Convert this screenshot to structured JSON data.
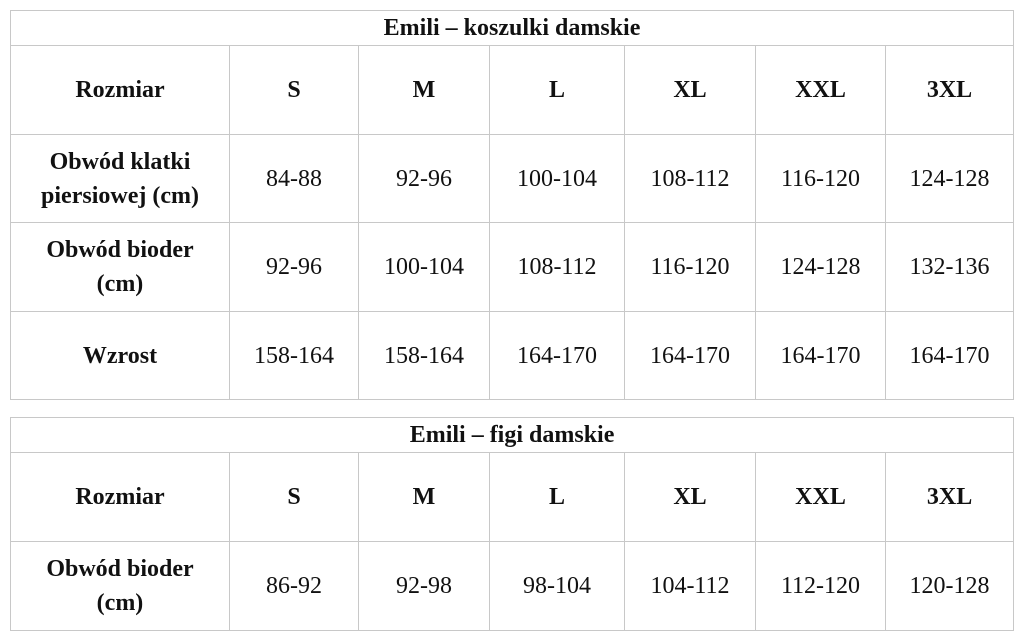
{
  "tables": [
    {
      "title": "Emili – koszulki damskie",
      "header": [
        "Rozmiar",
        "S",
        "M",
        "L",
        "XL",
        "XXL",
        "3XL"
      ],
      "rows": [
        {
          "label": "Obwód klatki piersiowej (cm)",
          "values": [
            "84-88",
            "92-96",
            "100-104",
            "108-112",
            "116-120",
            "124-128"
          ]
        },
        {
          "label": "Obwód bioder (cm)",
          "values": [
            "92-96",
            "100-104",
            "108-112",
            "116-120",
            "124-128",
            "132-136"
          ]
        },
        {
          "label": "Wzrost",
          "values": [
            "158-164",
            "158-164",
            "164-170",
            "164-170",
            "164-170",
            "164-170"
          ]
        }
      ]
    },
    {
      "title": "Emili – figi damskie",
      "header": [
        "Rozmiar",
        "S",
        "M",
        "L",
        "XL",
        "XXL",
        "3XL"
      ],
      "rows": [
        {
          "label": "Obwód bioder (cm)",
          "values": [
            "86-92",
            "92-98",
            "98-104",
            "104-112",
            "112-120",
            "120-128"
          ]
        }
      ]
    }
  ]
}
